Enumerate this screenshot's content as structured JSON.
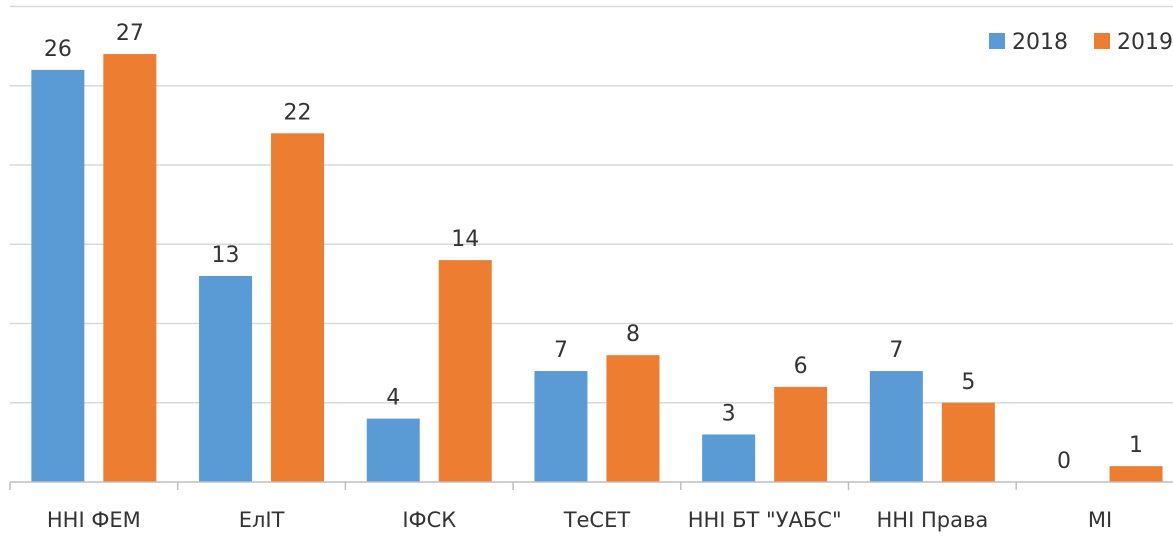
{
  "chart_data": {
    "type": "bar",
    "title": "",
    "xlabel": "",
    "ylabel": "",
    "ylim": [
      0,
      30
    ],
    "grid": true,
    "legend_position": "top-right",
    "categories": [
      "ННІ ФЕМ",
      "ЕлІТ",
      "ІФСК",
      "ТеСЕТ",
      "ННІ БТ \"УАБС\"",
      "ННІ Права",
      "МІ"
    ],
    "series": [
      {
        "name": "2018",
        "color": "#5b9bd5",
        "values": [
          26,
          13,
          4,
          7,
          3,
          7,
          0
        ]
      },
      {
        "name": "2019",
        "color": "#ed7d31",
        "values": [
          27,
          22,
          14,
          8,
          6,
          5,
          1
        ]
      }
    ]
  }
}
